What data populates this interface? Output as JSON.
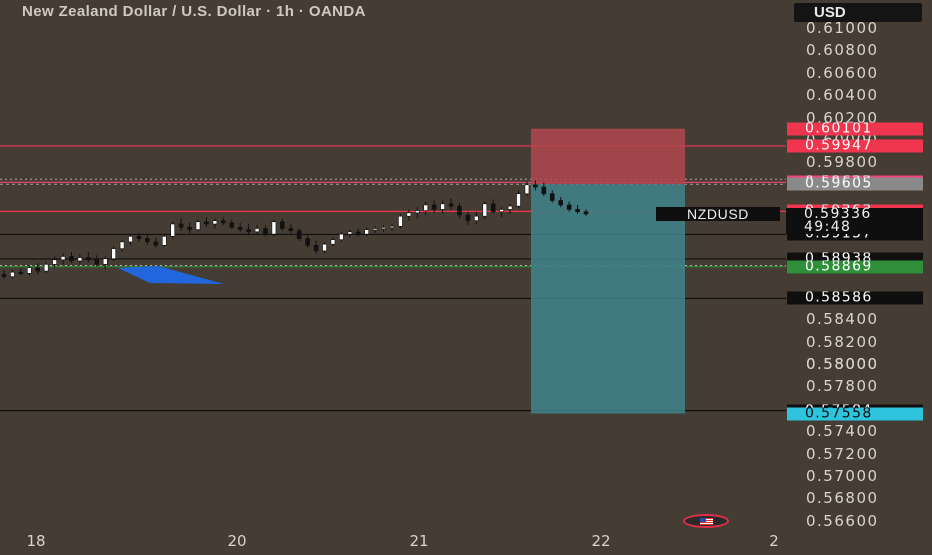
{
  "header": {
    "title": "New Zealand Dollar / U.S. Dollar · 1h · OANDA",
    "currency_button": "USD"
  },
  "price_scale": {
    "ticks": [
      "0.61000",
      "0.60800",
      "0.60600",
      "0.60400",
      "0.60200",
      "0.60000",
      "0.59800",
      "0.58000",
      "0.58400",
      "0.58200",
      "0.58000",
      "0.57800",
      "0.57400",
      "0.57200",
      "0.57000",
      "0.56800",
      "0.56600"
    ],
    "tick_values": [
      0.61,
      0.608,
      0.606,
      0.604,
      0.602,
      0.6,
      0.598,
      0.58,
      0.584,
      0.582,
      0.58,
      0.578,
      0.574,
      0.572,
      0.57,
      0.568,
      0.566
    ],
    "badges": [
      {
        "label": "0.60101",
        "value": 0.60101,
        "bg": "#f0354f",
        "fg": "#ffffff"
      },
      {
        "label": "0.59947",
        "value": 0.59947,
        "bg": "#f0354f",
        "fg": "#ffffff"
      },
      {
        "label": "0.59622",
        "value": 0.59622,
        "bg": "#f0457a",
        "fg": "#ffffff"
      },
      {
        "label": "0.59605",
        "value": 0.59605,
        "bg": "#8a8a8a",
        "fg": "#ffffff"
      },
      {
        "label": "0.59363",
        "value": 0.59363,
        "bg": "#f0354f",
        "fg": "#ffffff"
      },
      {
        "label": "0.59157",
        "value": 0.59157,
        "bg": "#0f0f0f",
        "fg": "#ffffff"
      },
      {
        "label": "0.58938",
        "value": 0.58938,
        "bg": "#0f0f0f",
        "fg": "#ffffff"
      },
      {
        "label": "0.58869",
        "value": 0.58869,
        "bg": "#2f8f3a",
        "fg": "#ffffff"
      },
      {
        "label": "0.58586",
        "value": 0.58586,
        "bg": "#0f0f0f",
        "fg": "#ffffff"
      },
      {
        "label": "0.57584",
        "value": 0.57584,
        "bg": "#0f0f0f",
        "fg": "#ffffff"
      },
      {
        "label": "0.57558",
        "value": 0.57558,
        "bg": "#2fc4de",
        "fg": "#0f0f0f"
      }
    ],
    "current": {
      "price": "0.59336",
      "countdown": "49:48",
      "value": 0.59336
    }
  },
  "symbol_label": "NZDUSD",
  "time_axis": {
    "labels": [
      "18",
      "20",
      "21",
      "22",
      "2"
    ]
  },
  "chart_data": {
    "type": "candlestick",
    "timeframe": "1h",
    "symbol": "NZDUSD",
    "ylim": [
      0.565,
      0.6115
    ],
    "horizontal_lines": [
      {
        "value": 0.59947,
        "color": "#f0354f"
      },
      {
        "value": 0.59622,
        "color": "#f0457a"
      },
      {
        "value": 0.59605,
        "color": "#a0a0a0",
        "dashed": true
      },
      {
        "value": 0.59363,
        "color": "#f0354f"
      },
      {
        "value": 0.59157,
        "color": "#0f0f0f"
      },
      {
        "value": 0.58938,
        "color": "#0f0f0f"
      },
      {
        "value": 0.58869,
        "color": "#2f8f3a"
      },
      {
        "value": 0.58586,
        "color": "#0f0f0f"
      },
      {
        "value": 0.57584,
        "color": "#0f0f0f"
      }
    ],
    "position": {
      "entry": 0.59605,
      "stop": 0.60101,
      "target": 0.57558,
      "stop_color": "#b0464e",
      "target_color": "#3f7f86"
    },
    "candles": [
      {
        "o": 0.588,
        "h": 0.5884,
        "l": 0.5876,
        "c": 0.5878
      },
      {
        "o": 0.5878,
        "h": 0.5884,
        "l": 0.5876,
        "c": 0.5882
      },
      {
        "o": 0.5882,
        "h": 0.5886,
        "l": 0.5879,
        "c": 0.5881
      },
      {
        "o": 0.5881,
        "h": 0.5888,
        "l": 0.5879,
        "c": 0.5886
      },
      {
        "o": 0.5886,
        "h": 0.589,
        "l": 0.588,
        "c": 0.5883
      },
      {
        "o": 0.5883,
        "h": 0.5891,
        "l": 0.5881,
        "c": 0.5889
      },
      {
        "o": 0.5889,
        "h": 0.5896,
        "l": 0.5886,
        "c": 0.5893
      },
      {
        "o": 0.5893,
        "h": 0.5899,
        "l": 0.5889,
        "c": 0.5896
      },
      {
        "o": 0.5896,
        "h": 0.59,
        "l": 0.589,
        "c": 0.5892
      },
      {
        "o": 0.5892,
        "h": 0.5898,
        "l": 0.5889,
        "c": 0.5895
      },
      {
        "o": 0.5895,
        "h": 0.59,
        "l": 0.5891,
        "c": 0.5893
      },
      {
        "o": 0.5893,
        "h": 0.5897,
        "l": 0.5887,
        "c": 0.5889
      },
      {
        "o": 0.5889,
        "h": 0.5896,
        "l": 0.5885,
        "c": 0.5894
      },
      {
        "o": 0.5894,
        "h": 0.5905,
        "l": 0.5892,
        "c": 0.5903
      },
      {
        "o": 0.5903,
        "h": 0.5911,
        "l": 0.59,
        "c": 0.5909
      },
      {
        "o": 0.5909,
        "h": 0.5916,
        "l": 0.5906,
        "c": 0.5914
      },
      {
        "o": 0.5914,
        "h": 0.5917,
        "l": 0.5909,
        "c": 0.5912
      },
      {
        "o": 0.5912,
        "h": 0.5916,
        "l": 0.5906,
        "c": 0.5909
      },
      {
        "o": 0.5909,
        "h": 0.5913,
        "l": 0.5904,
        "c": 0.5906
      },
      {
        "o": 0.5906,
        "h": 0.5916,
        "l": 0.5905,
        "c": 0.5914
      },
      {
        "o": 0.5914,
        "h": 0.5927,
        "l": 0.5912,
        "c": 0.5925
      },
      {
        "o": 0.5925,
        "h": 0.593,
        "l": 0.5919,
        "c": 0.5922
      },
      {
        "o": 0.5922,
        "h": 0.5926,
        "l": 0.5917,
        "c": 0.592
      },
      {
        "o": 0.592,
        "h": 0.5929,
        "l": 0.5918,
        "c": 0.5927
      },
      {
        "o": 0.5927,
        "h": 0.5931,
        "l": 0.5922,
        "c": 0.5925
      },
      {
        "o": 0.5925,
        "h": 0.593,
        "l": 0.5921,
        "c": 0.5928
      },
      {
        "o": 0.5928,
        "h": 0.5931,
        "l": 0.5924,
        "c": 0.5926
      },
      {
        "o": 0.5926,
        "h": 0.5929,
        "l": 0.5921,
        "c": 0.5922
      },
      {
        "o": 0.5922,
        "h": 0.5926,
        "l": 0.5918,
        "c": 0.592
      },
      {
        "o": 0.592,
        "h": 0.5925,
        "l": 0.5916,
        "c": 0.5918
      },
      {
        "o": 0.5918,
        "h": 0.5924,
        "l": 0.5915,
        "c": 0.5921
      },
      {
        "o": 0.5921,
        "h": 0.5924,
        "l": 0.5914,
        "c": 0.5916
      },
      {
        "o": 0.5916,
        "h": 0.5929,
        "l": 0.5914,
        "c": 0.5927
      },
      {
        "o": 0.5927,
        "h": 0.593,
        "l": 0.5919,
        "c": 0.5921
      },
      {
        "o": 0.5921,
        "h": 0.5925,
        "l": 0.5917,
        "c": 0.5919
      },
      {
        "o": 0.5919,
        "h": 0.5921,
        "l": 0.591,
        "c": 0.5912
      },
      {
        "o": 0.5912,
        "h": 0.5915,
        "l": 0.5904,
        "c": 0.5906
      },
      {
        "o": 0.5906,
        "h": 0.591,
        "l": 0.5898,
        "c": 0.5901
      },
      {
        "o": 0.5901,
        "h": 0.5909,
        "l": 0.5899,
        "c": 0.5907
      },
      {
        "o": 0.5907,
        "h": 0.5913,
        "l": 0.5905,
        "c": 0.5911
      },
      {
        "o": 0.5911,
        "h": 0.5918,
        "l": 0.5909,
        "c": 0.5916
      },
      {
        "o": 0.5916,
        "h": 0.592,
        "l": 0.5913,
        "c": 0.5918
      },
      {
        "o": 0.5918,
        "h": 0.5921,
        "l": 0.5914,
        "c": 0.5916
      },
      {
        "o": 0.5916,
        "h": 0.5922,
        "l": 0.5914,
        "c": 0.592
      },
      {
        "o": 0.592,
        "h": 0.5923,
        "l": 0.5917,
        "c": 0.5921
      },
      {
        "o": 0.5921,
        "h": 0.5924,
        "l": 0.5918,
        "c": 0.5922
      },
      {
        "o": 0.5922,
        "h": 0.5925,
        "l": 0.5919,
        "c": 0.5923
      },
      {
        "o": 0.5923,
        "h": 0.5934,
        "l": 0.5921,
        "c": 0.5932
      },
      {
        "o": 0.5932,
        "h": 0.5938,
        "l": 0.5928,
        "c": 0.5935
      },
      {
        "o": 0.5935,
        "h": 0.594,
        "l": 0.593,
        "c": 0.5937
      },
      {
        "o": 0.5937,
        "h": 0.5945,
        "l": 0.5933,
        "c": 0.5942
      },
      {
        "o": 0.5942,
        "h": 0.5947,
        "l": 0.5935,
        "c": 0.5938
      },
      {
        "o": 0.5938,
        "h": 0.5946,
        "l": 0.5934,
        "c": 0.5943
      },
      {
        "o": 0.5943,
        "h": 0.5948,
        "l": 0.5938,
        "c": 0.5941
      },
      {
        "o": 0.5941,
        "h": 0.5944,
        "l": 0.593,
        "c": 0.5933
      },
      {
        "o": 0.5933,
        "h": 0.5936,
        "l": 0.5924,
        "c": 0.5928
      },
      {
        "o": 0.5928,
        "h": 0.5936,
        "l": 0.5925,
        "c": 0.5932
      },
      {
        "o": 0.5932,
        "h": 0.5945,
        "l": 0.5929,
        "c": 0.5943
      },
      {
        "o": 0.5943,
        "h": 0.5947,
        "l": 0.5934,
        "c": 0.5936
      },
      {
        "o": 0.5936,
        "h": 0.594,
        "l": 0.5931,
        "c": 0.5938
      },
      {
        "o": 0.5938,
        "h": 0.5943,
        "l": 0.5934,
        "c": 0.5941
      },
      {
        "o": 0.5941,
        "h": 0.5955,
        "l": 0.5939,
        "c": 0.5952
      },
      {
        "o": 0.5952,
        "h": 0.5963,
        "l": 0.595,
        "c": 0.596
      },
      {
        "o": 0.596,
        "h": 0.5964,
        "l": 0.5955,
        "c": 0.5958
      },
      {
        "o": 0.5958,
        "h": 0.5962,
        "l": 0.595,
        "c": 0.5952
      },
      {
        "o": 0.5952,
        "h": 0.5955,
        "l": 0.5944,
        "c": 0.5946
      },
      {
        "o": 0.5946,
        "h": 0.5949,
        "l": 0.594,
        "c": 0.5942
      },
      {
        "o": 0.5942,
        "h": 0.5945,
        "l": 0.5936,
        "c": 0.5938
      },
      {
        "o": 0.5938,
        "h": 0.5942,
        "l": 0.5934,
        "c": 0.5936
      },
      {
        "o": 0.5936,
        "h": 0.5938,
        "l": 0.5932,
        "c": 0.5934
      }
    ]
  }
}
